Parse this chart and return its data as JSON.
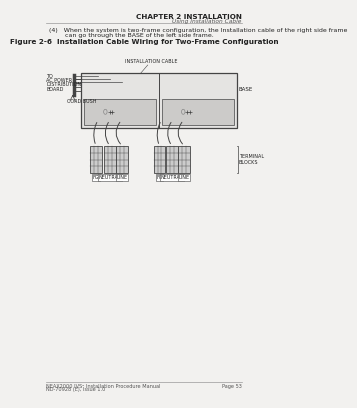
{
  "page_bg": "#f2f1ef",
  "header_line1": "CHAPTER 2 INSTALLATION",
  "header_line2": "Using Installation Cable",
  "footer_left1": "NEAX2000 IVS² Installation Procedure Manual",
  "footer_left2": "ND-70928 (E), Issue 1.0",
  "footer_right": "Page 53",
  "body_line1": "(4)   When the system is two-frame configuration, the Installation cable of the right side frame",
  "body_line2": "        can go through the BASE of the left side frame.",
  "fig_title": "Figure 2-6  Installation Cable Wiring for Two-Frame Configuration",
  "label_installation_cable": "INSTALLATION CABLE",
  "label_base": "BASE",
  "label_to": "TO",
  "label_ac_power": "AC POWER",
  "label_distribution": "DISTRIBUTION",
  "label_board": "BOARD",
  "label_cord_bush": "CORD BUSH",
  "label_terminal_blocks": "TERMINAL\nBLOCKS",
  "label_fg": "FG",
  "label_neutral": "NEUTRAL",
  "label_line": "LINE",
  "dc": "#444444",
  "tc": "#222222"
}
